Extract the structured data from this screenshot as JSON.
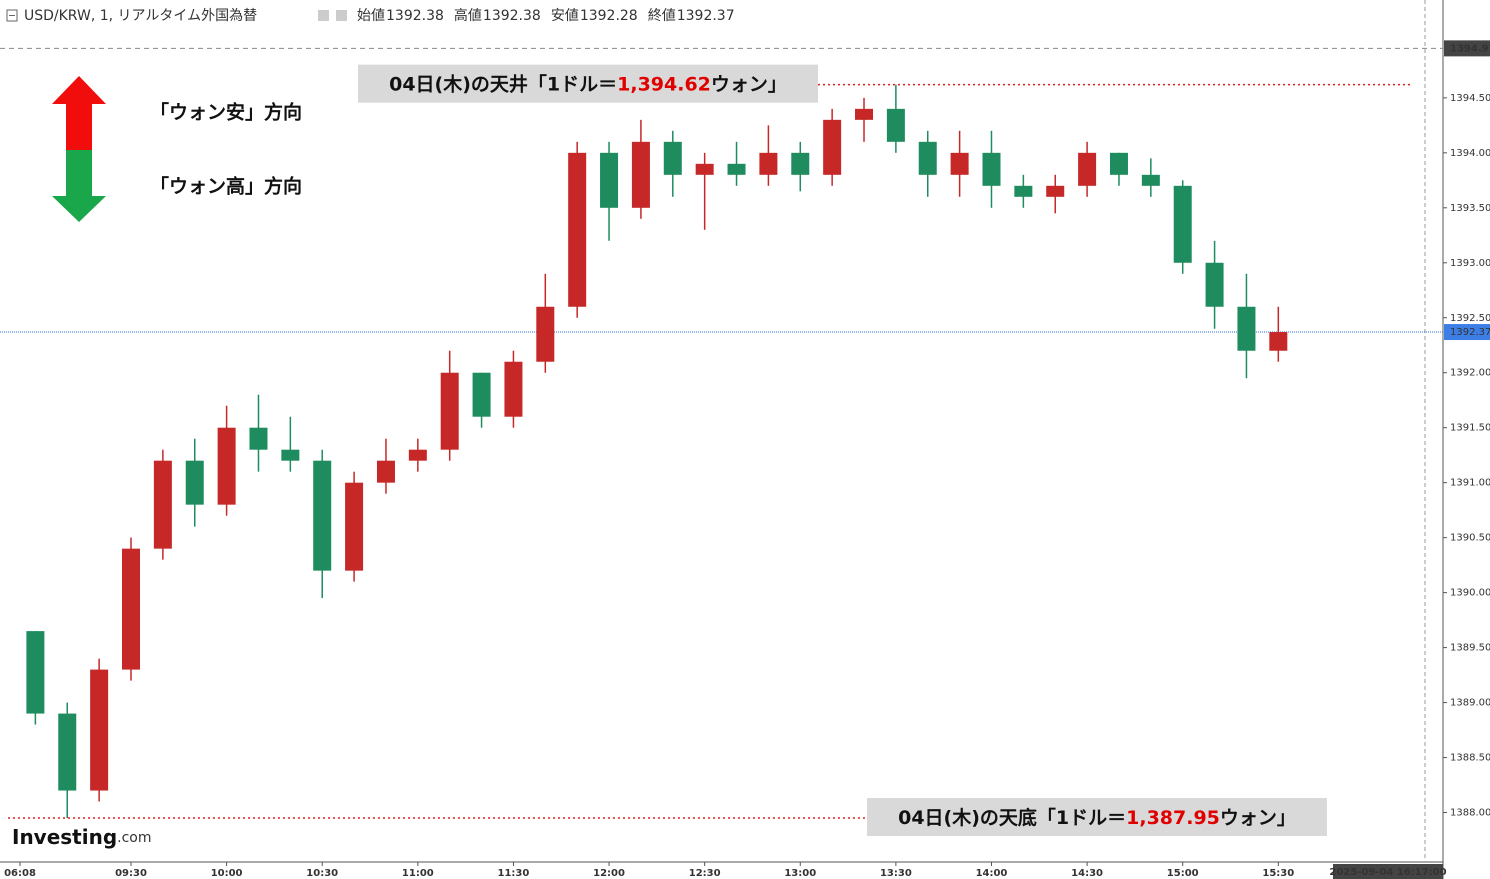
{
  "chart_data": {
    "type": "candlestick",
    "title": "USD/KRW, 1, リアルタイム外国為替",
    "header_values": [
      {
        "label": "始値",
        "value": 1392.38
      },
      {
        "label": "高値",
        "value": 1392.38
      },
      {
        "label": "安値",
        "value": 1392.28
      },
      {
        "label": "終値",
        "value": 1392.37
      }
    ],
    "x": [
      540,
      550,
      560,
      570,
      580,
      590,
      600,
      610,
      620,
      630,
      640,
      650,
      660,
      670,
      680,
      690,
      700,
      710,
      720,
      730,
      740,
      750,
      760,
      770,
      780,
      790,
      800,
      810,
      820,
      830,
      840,
      850,
      860,
      870,
      880,
      890,
      900,
      910,
      920,
      930
    ],
    "open": [
      1389.65,
      1388.9,
      1388.2,
      1389.3,
      1390.4,
      1391.2,
      1390.8,
      1391.5,
      1391.3,
      1391.2,
      1390.2,
      1391.0,
      1391.2,
      1391.3,
      1392.0,
      1391.6,
      1392.1,
      1392.6,
      1394.0,
      1393.5,
      1394.1,
      1393.8,
      1393.9,
      1393.8,
      1394.0,
      1393.8,
      1394.3,
      1394.4,
      1394.1,
      1393.8,
      1394.0,
      1393.7,
      1393.6,
      1393.7,
      1394.0,
      1393.8,
      1393.7,
      1393.0,
      1392.6,
      1392.2
    ],
    "high": [
      1389.65,
      1389.0,
      1389.4,
      1390.5,
      1391.3,
      1391.4,
      1391.7,
      1391.8,
      1391.6,
      1391.3,
      1391.1,
      1391.4,
      1391.4,
      1392.2,
      1392.0,
      1392.2,
      1392.9,
      1394.1,
      1394.1,
      1394.3,
      1394.2,
      1394.0,
      1394.1,
      1394.25,
      1394.1,
      1394.4,
      1394.5,
      1394.62,
      1394.2,
      1394.2,
      1394.2,
      1393.8,
      1393.8,
      1394.1,
      1394.0,
      1393.95,
      1393.75,
      1393.2,
      1392.9,
      1392.6
    ],
    "low": [
      1388.8,
      1387.95,
      1388.1,
      1389.2,
      1390.3,
      1390.6,
      1390.7,
      1391.1,
      1391.1,
      1389.95,
      1390.1,
      1390.9,
      1391.1,
      1391.2,
      1391.5,
      1391.5,
      1392.0,
      1392.5,
      1393.2,
      1393.4,
      1393.6,
      1393.3,
      1393.7,
      1393.7,
      1393.65,
      1393.7,
      1394.1,
      1394.0,
      1393.6,
      1393.6,
      1393.5,
      1393.5,
      1393.45,
      1393.6,
      1393.7,
      1393.6,
      1392.9,
      1392.4,
      1391.95,
      1392.1
    ],
    "close": [
      1388.9,
      1388.2,
      1389.3,
      1390.4,
      1391.2,
      1390.8,
      1391.5,
      1391.3,
      1391.2,
      1390.2,
      1391.0,
      1391.2,
      1391.3,
      1392.0,
      1391.6,
      1392.1,
      1392.6,
      1394.0,
      1393.5,
      1394.1,
      1393.8,
      1393.9,
      1393.8,
      1394.0,
      1393.8,
      1394.3,
      1394.4,
      1394.1,
      1393.8,
      1394.0,
      1393.7,
      1393.6,
      1393.7,
      1394.0,
      1393.8,
      1393.7,
      1393.0,
      1392.6,
      1392.2,
      1392.37
    ],
    "up_color": "#c62828",
    "down_color": "#1e8c5e",
    "xlim": [
      529,
      976
    ],
    "ylim": [
      1387.55,
      1395.39
    ],
    "xticks": [
      {
        "value": 535,
        "label": "06:08"
      },
      {
        "value": 570,
        "label": "09:30"
      },
      {
        "value": 600,
        "label": "10:00"
      },
      {
        "value": 630,
        "label": "10:30"
      },
      {
        "value": 660,
        "label": "11:00"
      },
      {
        "value": 690,
        "label": "11:30"
      },
      {
        "value": 720,
        "label": "12:00"
      },
      {
        "value": 750,
        "label": "12:30"
      },
      {
        "value": 780,
        "label": "13:00"
      },
      {
        "value": 810,
        "label": "13:30"
      },
      {
        "value": 840,
        "label": "14:00"
      },
      {
        "value": 870,
        "label": "14:30"
      },
      {
        "value": 900,
        "label": "15:00"
      },
      {
        "value": 930,
        "label": "15:30"
      }
    ],
    "yticks": [
      {
        "value": 1388,
        "label": "1388.00"
      },
      {
        "value": 1388.5,
        "label": "1388.50"
      },
      {
        "value": 1389,
        "label": "1389.00"
      },
      {
        "value": 1389.5,
        "label": "1389.50"
      },
      {
        "value": 1390,
        "label": "1390.00"
      },
      {
        "value": 1390.5,
        "label": "1390.50"
      },
      {
        "value": 1391,
        "label": "1391.00"
      },
      {
        "value": 1391.5,
        "label": "1391.50"
      },
      {
        "value": 1392,
        "label": "1392.00"
      },
      {
        "value": 1392.5,
        "label": "1392.50"
      },
      {
        "value": 1393,
        "label": "1393.00"
      },
      {
        "value": 1393.5,
        "label": "1393.50"
      },
      {
        "value": 1394,
        "label": "1394.00"
      },
      {
        "value": 1394.5,
        "label": "1394.50"
      }
    ],
    "marker_price": 1394.95,
    "last_price": 1392.37,
    "date_label": "2025-09-04 16:17:00",
    "annotations": [
      {
        "prefix": "04日(木)の天井「1ドル＝",
        "value": 1394.62,
        "value_label": "1,394.62",
        "suffix": "ウォン」"
      },
      {
        "prefix": "04日(木)の天底「1ドル＝",
        "value": 1387.95,
        "value_label": "1,387.95",
        "suffix": "ウォン」"
      }
    ],
    "legend": [
      "「ウォン安」方向",
      "「ウォン高」方向"
    ],
    "logo": "Investing",
    "logo_suffix": ".com"
  }
}
